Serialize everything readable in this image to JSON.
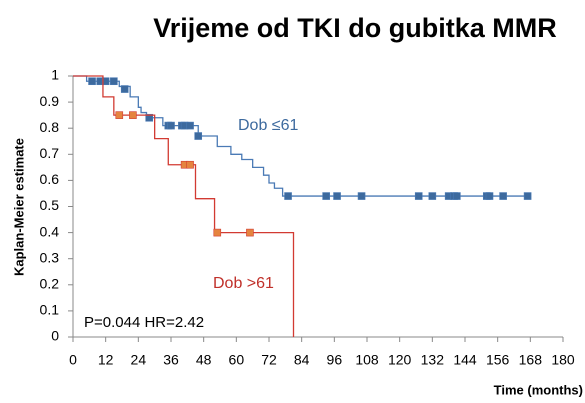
{
  "chart_data": {
    "type": "step",
    "title": "Vrijeme od TKI do gubitka MMR",
    "y_label": "Kaplan-Meier estimate",
    "x_label": "Time (months)",
    "annotations": [
      "Dob ≤61",
      "Dob >61",
      "P=0.044 HR=2.42"
    ],
    "xlim": [
      0,
      180
    ],
    "xticks": [
      0,
      12,
      24,
      36,
      48,
      60,
      72,
      84,
      96,
      108,
      120,
      132,
      144,
      156,
      168,
      180
    ],
    "ylim": [
      0,
      1
    ],
    "yticks": [
      0,
      0.1,
      0.2,
      0.3,
      0.4,
      0.5,
      0.6,
      0.7,
      0.8,
      0.9,
      1
    ],
    "grid": false,
    "series": [
      {
        "color": "#4a7ab5",
        "marker_color": "#3d6a9e",
        "x": [
          0,
          5,
          17,
          21,
          24,
          25,
          27,
          33,
          46,
          53,
          58,
          62,
          66,
          70,
          72,
          74,
          77,
          168
        ],
        "values": [
          1,
          0.98,
          0.96,
          0.92,
          0.88,
          0.86,
          0.84,
          0.81,
          0.77,
          0.73,
          0.7,
          0.68,
          0.65,
          0.62,
          0.59,
          0.57,
          0.54,
          0.54
        ],
        "censored": {
          "x": [
            7,
            10,
            12,
            15,
            19,
            28,
            35,
            36,
            40,
            41,
            43,
            46,
            79,
            93,
            97,
            106,
            127,
            132,
            138,
            140,
            141,
            152,
            153,
            158,
            167
          ],
          "values": [
            0.98,
            0.98,
            0.98,
            0.98,
            0.95,
            0.84,
            0.81,
            0.81,
            0.81,
            0.81,
            0.81,
            0.77,
            0.54,
            0.54,
            0.54,
            0.54,
            0.54,
            0.54,
            0.54,
            0.54,
            0.54,
            0.54,
            0.54,
            0.54,
            0.54
          ]
        }
      },
      {
        "color": "#d23a32",
        "marker_color": "#e5843f",
        "x": [
          0,
          11,
          15,
          30,
          35,
          45,
          52,
          81
        ],
        "values": [
          1,
          0.92,
          0.85,
          0.76,
          0.66,
          0.53,
          0.4,
          0
        ],
        "censored": {
          "x": [
            17,
            22,
            41,
            43,
            53,
            65
          ],
          "values": [
            0.85,
            0.85,
            0.66,
            0.66,
            0.4,
            0.4
          ]
        }
      }
    ]
  }
}
